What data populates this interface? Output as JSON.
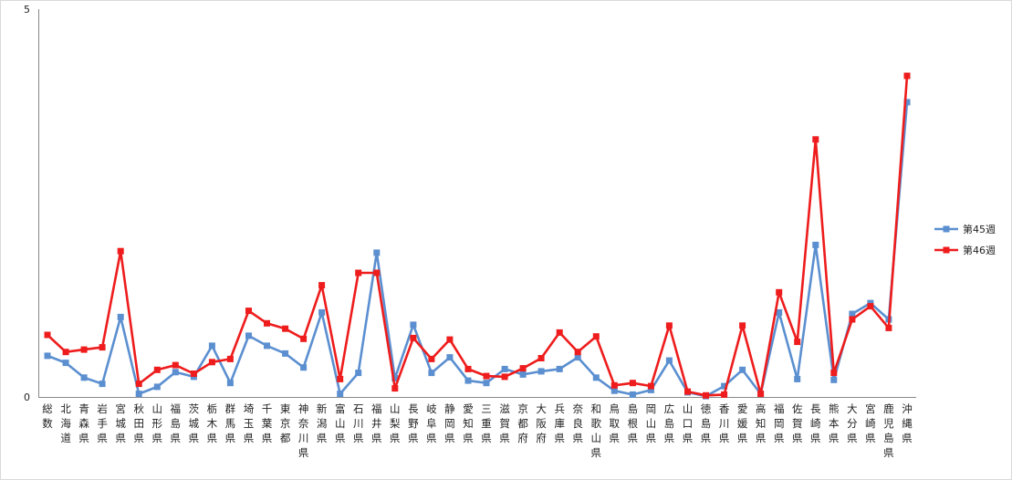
{
  "chart_data": {
    "type": "line",
    "title": "",
    "xlabel": "",
    "ylabel": "",
    "ylim": [
      0,
      5
    ],
    "y_ticks": [
      "0",
      "5"
    ],
    "grid": false,
    "legend_position": "right",
    "categories": [
      "総数",
      "北海道",
      "青森県",
      "岩手県",
      "宮城県",
      "秋田県",
      "山形県",
      "福島県",
      "茨城県",
      "栃木県",
      "群馬県",
      "埼玉県",
      "千葉県",
      "東京都",
      "神奈川県",
      "新潟県",
      "富山県",
      "石川県",
      "福井県",
      "山梨県",
      "長野県",
      "岐阜県",
      "静岡県",
      "愛知県",
      "三重県",
      "滋賀県",
      "京都府",
      "大阪府",
      "兵庫県",
      "奈良県",
      "和歌山県",
      "鳥取県",
      "島根県",
      "岡山県",
      "広島県",
      "山口県",
      "徳島県",
      "香川県",
      "愛媛県",
      "高知県",
      "福岡県",
      "佐賀県",
      "長崎県",
      "熊本県",
      "大分県",
      "宮崎県",
      "鹿児島県",
      "沖縄県"
    ],
    "series": [
      {
        "name": "第45週",
        "color": "#5B8FD0",
        "marker": "square",
        "values": [
          0.53,
          0.44,
          0.25,
          0.17,
          1.03,
          0.04,
          0.13,
          0.32,
          0.26,
          0.66,
          0.18,
          0.79,
          0.66,
          0.56,
          0.38,
          1.09,
          0.04,
          0.31,
          1.86,
          0.24,
          0.93,
          0.31,
          0.51,
          0.21,
          0.18,
          0.36,
          0.29,
          0.33,
          0.36,
          0.51,
          0.25,
          0.08,
          0.03,
          0.09,
          0.47,
          0.06,
          0.01,
          0.14,
          0.35,
          0.04,
          1.09,
          0.23,
          1.96,
          0.22,
          1.07,
          1.21,
          1.0,
          3.8
        ]
      },
      {
        "name": "第46週",
        "color": "#EE1C1C",
        "marker": "square",
        "values": [
          0.8,
          0.58,
          0.61,
          0.64,
          1.88,
          0.17,
          0.35,
          0.41,
          0.3,
          0.45,
          0.49,
          1.11,
          0.95,
          0.88,
          0.75,
          1.44,
          0.23,
          1.6,
          1.6,
          0.11,
          0.76,
          0.49,
          0.74,
          0.36,
          0.27,
          0.26,
          0.37,
          0.5,
          0.83,
          0.58,
          0.78,
          0.15,
          0.18,
          0.14,
          0.92,
          0.07,
          0.02,
          0.03,
          0.92,
          0.04,
          1.35,
          0.71,
          3.32,
          0.31,
          1.0,
          1.17,
          0.89,
          4.14
        ]
      }
    ]
  }
}
